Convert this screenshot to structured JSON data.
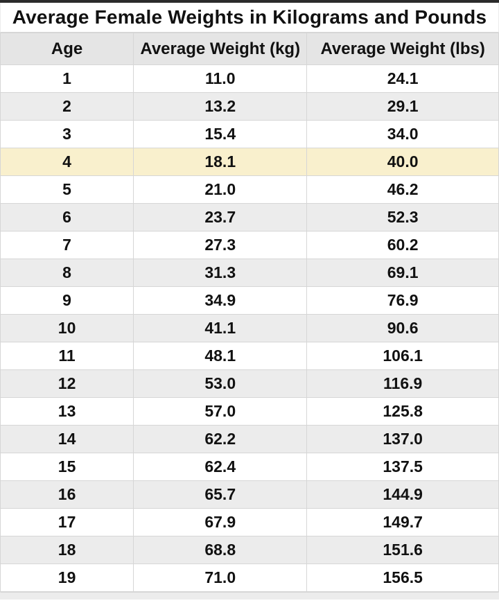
{
  "table": {
    "title": "Average Female Weights in Kilograms and Pounds",
    "columns": [
      "Age",
      "Average Weight (kg)",
      "Average Weight (lbs)"
    ],
    "rows": [
      [
        "1",
        "11.0",
        "24.1"
      ],
      [
        "2",
        "13.2",
        "29.1"
      ],
      [
        "3",
        "15.4",
        "34.0"
      ],
      [
        "4",
        "18.1",
        "40.0"
      ],
      [
        "5",
        "21.0",
        "46.2"
      ],
      [
        "6",
        "23.7",
        "52.3"
      ],
      [
        "7",
        "27.3",
        "60.2"
      ],
      [
        "8",
        "31.3",
        "69.1"
      ],
      [
        "9",
        "34.9",
        "76.9"
      ],
      [
        "10",
        "41.1",
        "90.6"
      ],
      [
        "11",
        "48.1",
        "106.1"
      ],
      [
        "12",
        "53.0",
        "116.9"
      ],
      [
        "13",
        "57.0",
        "125.8"
      ],
      [
        "14",
        "62.2",
        "137.0"
      ],
      [
        "15",
        "62.4",
        "137.5"
      ],
      [
        "16",
        "65.7",
        "144.9"
      ],
      [
        "17",
        "67.9",
        "149.7"
      ],
      [
        "18",
        "68.8",
        "151.6"
      ],
      [
        "19",
        "71.0",
        "156.5"
      ]
    ],
    "highlighted_age": "4"
  },
  "colors": {
    "text": "#111111",
    "top_border": "#2b2b2b",
    "header_bg": "#e5e5e5",
    "row_alt_bg": "#ececec",
    "highlight_bg": "#f9f0cd",
    "grid_line": "#d6d6d6"
  },
  "chart_data": {
    "type": "table",
    "title": "Average Female Weights in Kilograms and Pounds",
    "categories": [
      1,
      2,
      3,
      4,
      5,
      6,
      7,
      8,
      9,
      10,
      11,
      12,
      13,
      14,
      15,
      16,
      17,
      18,
      19
    ],
    "series": [
      {
        "name": "Average Weight (kg)",
        "values": [
          11.0,
          13.2,
          15.4,
          18.1,
          21.0,
          23.7,
          27.3,
          31.3,
          34.9,
          41.1,
          48.1,
          53.0,
          57.0,
          62.2,
          62.4,
          65.7,
          67.9,
          68.8,
          71.0
        ]
      },
      {
        "name": "Average Weight (lbs)",
        "values": [
          24.1,
          29.1,
          34.0,
          40.0,
          46.2,
          52.3,
          60.2,
          69.1,
          76.9,
          90.6,
          106.1,
          116.9,
          125.8,
          137.0,
          137.5,
          144.9,
          149.7,
          151.6,
          156.5
        ]
      }
    ],
    "xlabel": "Age",
    "highlighted_row_age": 4
  }
}
